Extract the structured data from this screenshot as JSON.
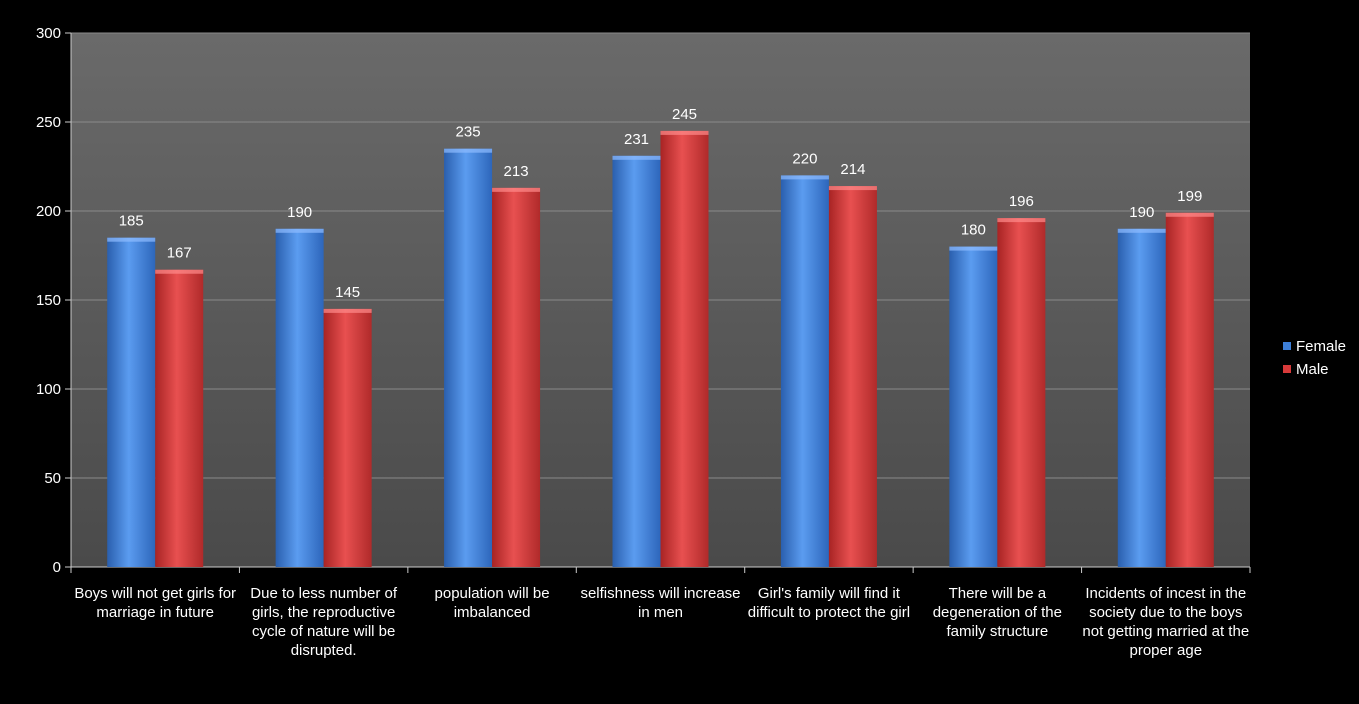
{
  "chart_data": {
    "type": "bar",
    "title": "",
    "xlabel": "",
    "ylabel": "",
    "ylim": [
      0,
      300
    ],
    "yticks": [
      0,
      50,
      100,
      150,
      200,
      250,
      300
    ],
    "grid": true,
    "legend_position": "right",
    "categories": [
      "Boys will not get girls for marriage in future",
      "Due to less number of girls, the reproductive cycle of nature will be disrupted.",
      "population will be imbalanced",
      "selfishness will increase in men",
      "Girl's family will find it difficult to protect the girl",
      "There will be a degeneration of the family structure",
      "Incidents of incest in the society due to the boys not getting married at the proper age"
    ],
    "series": [
      {
        "name": "Female",
        "color": "#3d7fd8",
        "values": [
          185,
          190,
          235,
          231,
          220,
          180,
          190
        ]
      },
      {
        "name": "Male",
        "color": "#d83a3a",
        "values": [
          167,
          145,
          213,
          245,
          214,
          196,
          199
        ]
      }
    ]
  }
}
